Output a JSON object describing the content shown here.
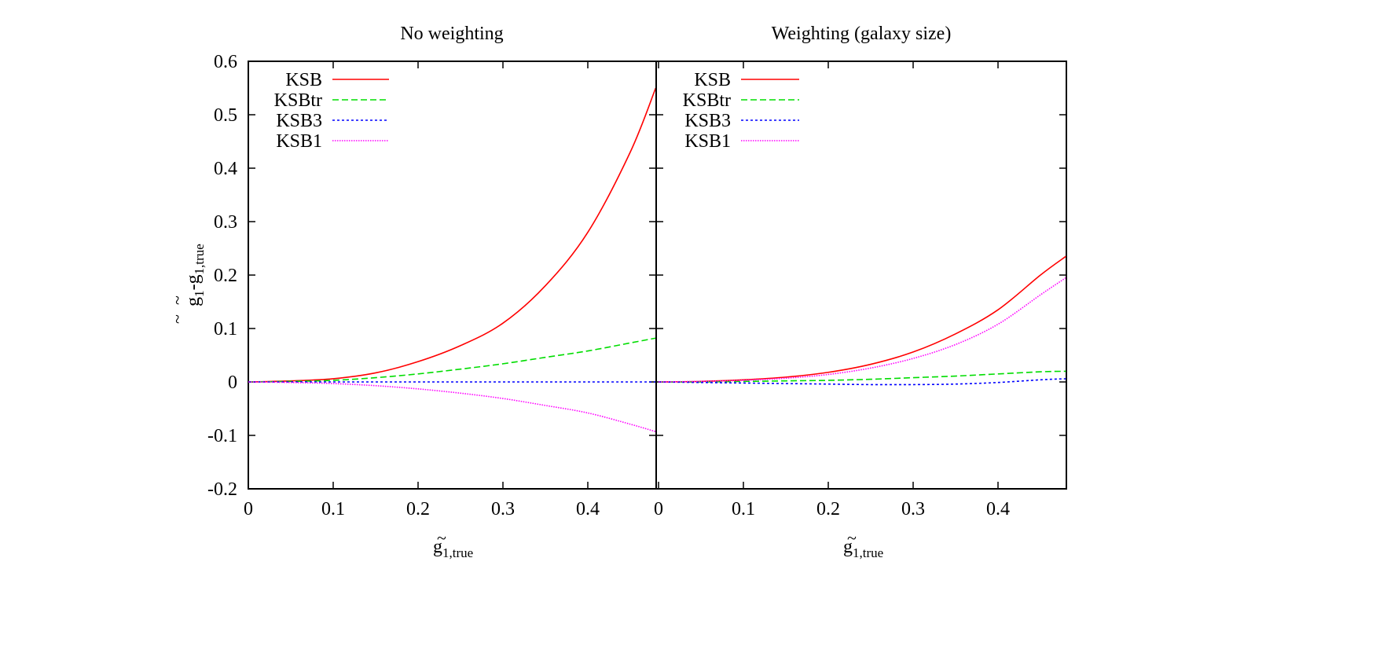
{
  "chart_data": [
    {
      "type": "line",
      "title": "No weighting",
      "xlabel": "g̃1,true",
      "ylabel": "g̃1-g̃1,true",
      "xlim": [
        0,
        0.48
      ],
      "ylim": [
        -0.2,
        0.6
      ],
      "xticks": [
        "0",
        "0.1",
        "0.2",
        "0.3",
        "0.4"
      ],
      "yticks": [
        "-0.2",
        "-0.1",
        "0",
        "0.1",
        "0.2",
        "0.3",
        "0.4",
        "0.5",
        "0.6"
      ],
      "legend_position": "upper-left",
      "grid": false,
      "x": [
        0,
        0.05,
        0.1,
        0.15,
        0.2,
        0.25,
        0.3,
        0.35,
        0.4,
        0.45,
        0.48
      ],
      "series": [
        {
          "name": "KSB",
          "color": "#ff0000",
          "style": "solid",
          "values": [
            0,
            0.002,
            0.006,
            0.017,
            0.038,
            0.068,
            0.11,
            0.18,
            0.28,
            0.43,
            0.55
          ]
        },
        {
          "name": "KSBtr",
          "color": "#00dd00",
          "style": "dashed",
          "values": [
            0,
            0.001,
            0.003,
            0.008,
            0.015,
            0.024,
            0.034,
            0.046,
            0.058,
            0.073,
            0.082
          ]
        },
        {
          "name": "KSB3",
          "color": "#0000ff",
          "style": "dotted-dash",
          "values": [
            0,
            0,
            0,
            0,
            0,
            0,
            0,
            0,
            0,
            0,
            0
          ]
        },
        {
          "name": "KSB1",
          "color": "#ff00ff",
          "style": "dotted",
          "values": [
            0,
            -0.001,
            -0.003,
            -0.007,
            -0.013,
            -0.021,
            -0.031,
            -0.044,
            -0.058,
            -0.079,
            -0.093
          ]
        }
      ]
    },
    {
      "type": "line",
      "title": "Weighting (galaxy size)",
      "xlabel": "g̃1,true",
      "ylabel": "",
      "xlim": [
        0,
        0.48
      ],
      "ylim": [
        -0.2,
        0.6
      ],
      "xticks": [
        "0",
        "0.1",
        "0.2",
        "0.3",
        "0.4"
      ],
      "legend_position": "upper-left",
      "grid": false,
      "x": [
        0,
        0.05,
        0.1,
        0.15,
        0.2,
        0.25,
        0.3,
        0.35,
        0.4,
        0.45,
        0.48
      ],
      "series": [
        {
          "name": "KSB",
          "color": "#ff0000",
          "style": "solid",
          "values": [
            0,
            0.001,
            0.004,
            0.009,
            0.018,
            0.033,
            0.056,
            0.09,
            0.135,
            0.2,
            0.235
          ]
        },
        {
          "name": "KSBtr",
          "color": "#00dd00",
          "style": "dashed",
          "values": [
            0,
            0,
            0.001,
            0.002,
            0.003,
            0.005,
            0.008,
            0.011,
            0.015,
            0.019,
            0.02
          ]
        },
        {
          "name": "KSB3",
          "color": "#0000ff",
          "style": "dotted-dash",
          "values": [
            0,
            -0.001,
            -0.002,
            -0.003,
            -0.004,
            -0.005,
            -0.005,
            -0.004,
            -0.001,
            0.004,
            0.006
          ]
        },
        {
          "name": "KSB1",
          "color": "#ff00ff",
          "style": "dotted",
          "values": [
            0,
            0.001,
            0.003,
            0.007,
            0.014,
            0.026,
            0.044,
            0.07,
            0.108,
            0.163,
            0.195
          ]
        }
      ]
    }
  ],
  "figure": {
    "left_title": "No weighting",
    "right_title": "Weighting (galaxy size)",
    "ylabel_main": "g",
    "ylabel_sub1": "1",
    "ylabel_minus": "-g",
    "ylabel_sub2": "1,true",
    "tilde": "~",
    "xlabel_main": "g",
    "xlabel_sub": "1,true",
    "legend": [
      "KSB",
      "KSBtr",
      "KSB3",
      "KSB1"
    ]
  }
}
